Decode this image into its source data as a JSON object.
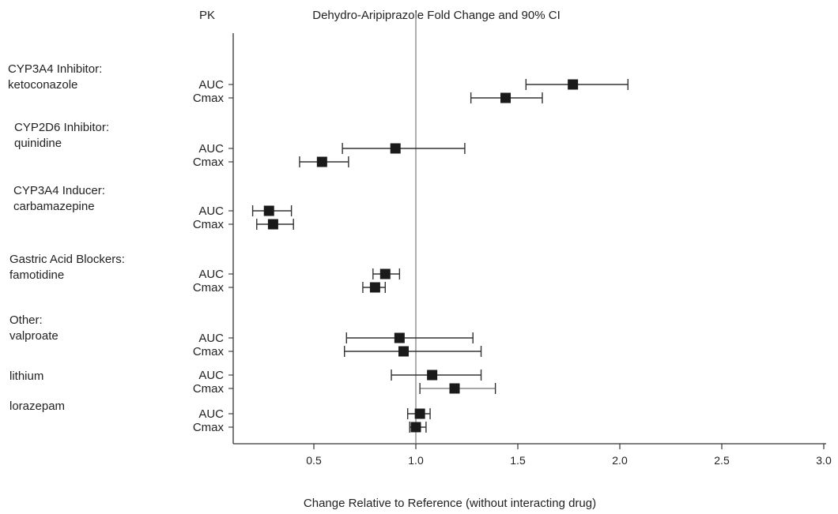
{
  "chart_data": {
    "type": "scatter",
    "title": "Dehydro-Aripiprazole Fold Change and 90% CI",
    "pk_header": "PK",
    "xlabel": "Change Relative to Reference (without interacting drug)",
    "xlim": [
      0.1,
      3.0
    ],
    "xticks": [
      0.5,
      1.0,
      1.5,
      2.0,
      2.5,
      3.0
    ],
    "xtick_labels": [
      "0.5",
      "1.0",
      "1.5",
      "2.0",
      "2.5",
      "3.0"
    ],
    "reference_line": 1.0,
    "groups": [
      {
        "label_lines": [
          "CYP3A4 Inhibitor:",
          "ketoconazole"
        ],
        "rows": [
          {
            "pk": "AUC",
            "estimate": 1.77,
            "ci_low": 1.54,
            "ci_high": 2.04
          },
          {
            "pk": "Cmax",
            "estimate": 1.44,
            "ci_low": 1.27,
            "ci_high": 1.62
          }
        ]
      },
      {
        "label_lines": [
          "CYP2D6 Inhibitor:",
          "quinidine"
        ],
        "rows": [
          {
            "pk": "AUC",
            "estimate": 0.9,
            "ci_low": 0.64,
            "ci_high": 1.24
          },
          {
            "pk": "Cmax",
            "estimate": 0.54,
            "ci_low": 0.43,
            "ci_high": 0.67
          }
        ]
      },
      {
        "label_lines": [
          "CYP3A4 Inducer:",
          "carbamazepine"
        ],
        "rows": [
          {
            "pk": "AUC",
            "estimate": 0.28,
            "ci_low": 0.2,
            "ci_high": 0.39
          },
          {
            "pk": "Cmax",
            "estimate": 0.3,
            "ci_low": 0.22,
            "ci_high": 0.4
          }
        ]
      },
      {
        "label_lines": [
          "Gastric Acid Blockers:",
          "famotidine"
        ],
        "rows": [
          {
            "pk": "AUC",
            "estimate": 0.85,
            "ci_low": 0.79,
            "ci_high": 0.92
          },
          {
            "pk": "Cmax",
            "estimate": 0.8,
            "ci_low": 0.74,
            "ci_high": 0.85
          }
        ]
      },
      {
        "label_lines": [
          "Other:",
          "valproate"
        ],
        "rows": [
          {
            "pk": "AUC",
            "estimate": 0.92,
            "ci_low": 0.66,
            "ci_high": 1.28
          },
          {
            "pk": "Cmax",
            "estimate": 0.94,
            "ci_low": 0.65,
            "ci_high": 1.32
          }
        ]
      },
      {
        "label_lines": [
          "lithium"
        ],
        "rows": [
          {
            "pk": "AUC",
            "estimate": 1.08,
            "ci_low": 0.88,
            "ci_high": 1.32
          },
          {
            "pk": "Cmax",
            "estimate": 1.19,
            "ci_low": 1.02,
            "ci_high": 1.39
          }
        ]
      },
      {
        "label_lines": [
          "lorazepam"
        ],
        "rows": [
          {
            "pk": "AUC",
            "estimate": 1.02,
            "ci_low": 0.96,
            "ci_high": 1.07
          },
          {
            "pk": "Cmax",
            "estimate": 1.0,
            "ci_low": 0.97,
            "ci_high": 1.05
          }
        ]
      }
    ]
  }
}
